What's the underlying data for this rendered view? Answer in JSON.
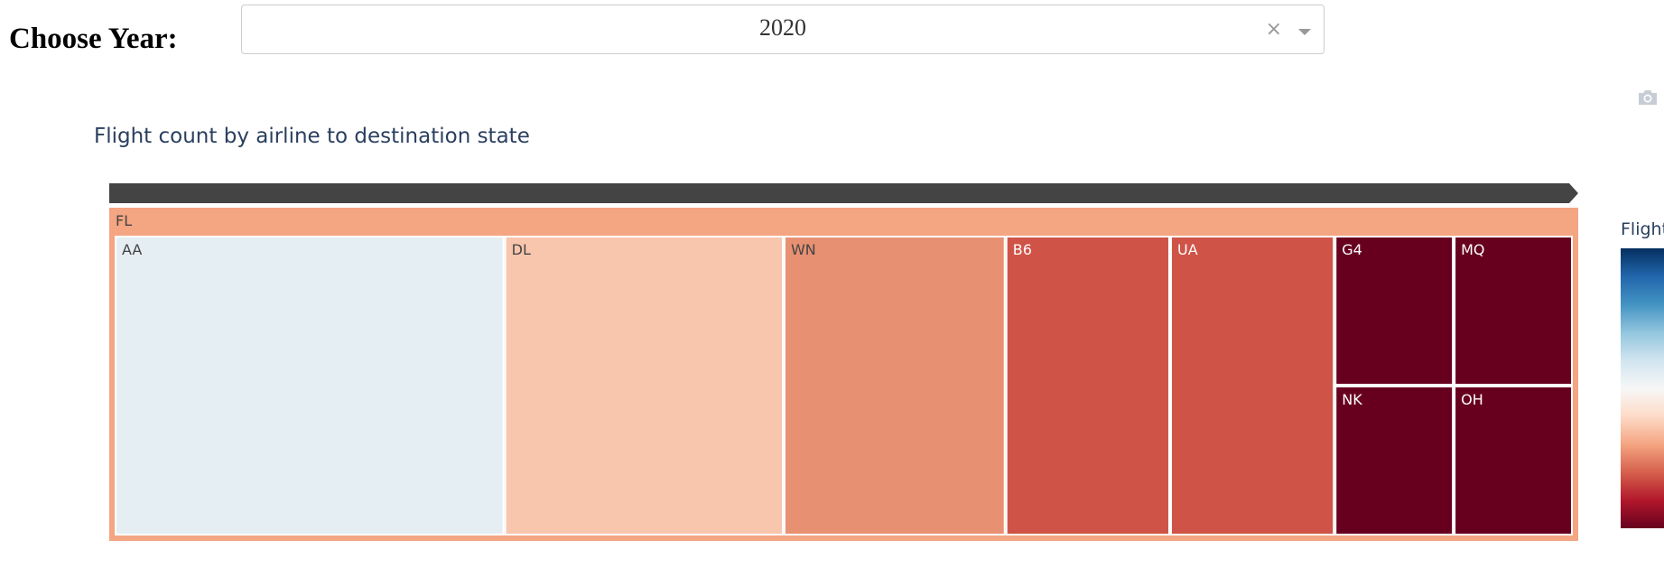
{
  "controls": {
    "year_label": "Choose Year:",
    "year_value": "2020",
    "clear_glyph": "×"
  },
  "chart_data": {
    "type": "treemap",
    "title": "Flight count by airline to destination state",
    "root": {
      "label": "FL",
      "color": "#f4a582"
    },
    "items": [
      {
        "label": "AA",
        "value": 360,
        "color": "#e5eef3",
        "text_color": "#444444"
      },
      {
        "label": "DL",
        "value": 258,
        "color": "#f8c6ad",
        "text_color": "#444444"
      },
      {
        "label": "WN",
        "value": 205,
        "color": "#e89172",
        "text_color": "#444444"
      },
      {
        "label": "B6",
        "value": 152,
        "color": "#cf5447",
        "text_color": "#ffffff"
      },
      {
        "label": "UA",
        "value": 152,
        "color": "#cf5447",
        "text_color": "#ffffff"
      },
      {
        "label": "G4",
        "value": 55,
        "color": "#67001f",
        "text_color": "#ffffff"
      },
      {
        "label": "MQ",
        "value": 55,
        "color": "#67001f",
        "text_color": "#ffffff"
      },
      {
        "label": "NK",
        "value": 55,
        "color": "#67001f",
        "text_color": "#ffffff"
      },
      {
        "label": "OH",
        "value": 55,
        "color": "#67001f",
        "text_color": "#ffffff"
      }
    ],
    "colorbar": {
      "title": "Flight",
      "colorscale": "RdBu"
    }
  },
  "colors": {
    "pathbar": "#444444",
    "tile_border": "#ffffff",
    "title_text": "#2a3f5f"
  },
  "icons": {
    "modebar": "camera-icon"
  }
}
